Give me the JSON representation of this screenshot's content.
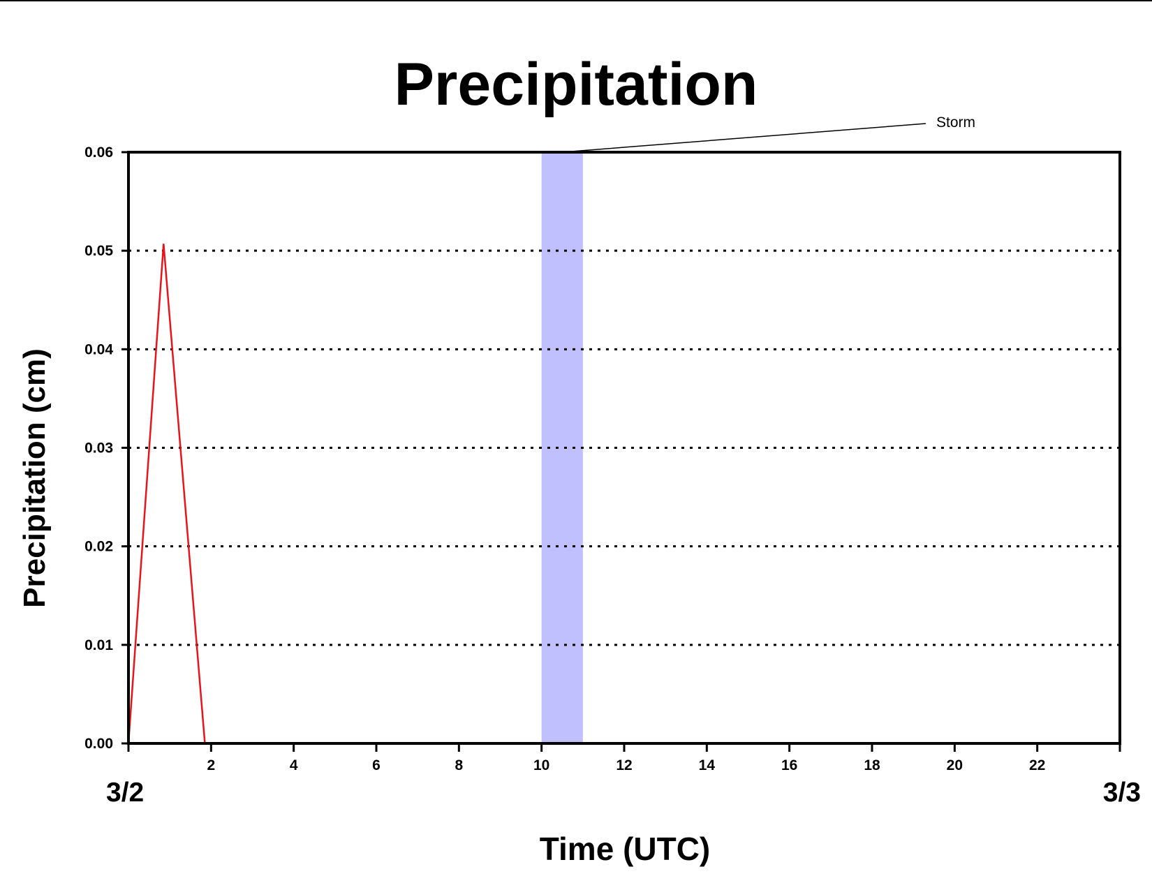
{
  "chart_data": {
    "type": "line",
    "title": "Precipitation",
    "xlabel": "Time (UTC)",
    "ylabel": "Precipitation (cm)",
    "xlim": [
      0,
      24
    ],
    "ylim": [
      0,
      0.06
    ],
    "x_ticks": [
      2,
      4,
      6,
      8,
      10,
      12,
      14,
      16,
      18,
      20,
      22
    ],
    "x_tick_labels": [
      "2",
      "4",
      "6",
      "8",
      "10",
      "12",
      "14",
      "16",
      "18",
      "20",
      "22"
    ],
    "y_ticks": [
      0,
      0.01,
      0.02,
      0.03,
      0.04,
      0.05,
      0.06
    ],
    "y_tick_labels": [
      "0.00",
      "0.01",
      "0.02",
      "0.03",
      "0.04",
      "0.05",
      "0.06"
    ],
    "date_labels": [
      {
        "x": 0,
        "label": "3/2"
      },
      {
        "x": 24,
        "label": "3/3"
      }
    ],
    "grid": {
      "y": true,
      "x": false,
      "style": "dotted"
    },
    "series": [
      {
        "color": "#e8141b",
        "x": [
          0,
          0.85,
          1.85,
          24
        ],
        "y": [
          0,
          0.0507,
          0,
          0
        ]
      }
    ],
    "highlight_band": {
      "x_start": 10,
      "x_end": 11,
      "color": "#c0c0ff",
      "label": "Storm"
    }
  }
}
